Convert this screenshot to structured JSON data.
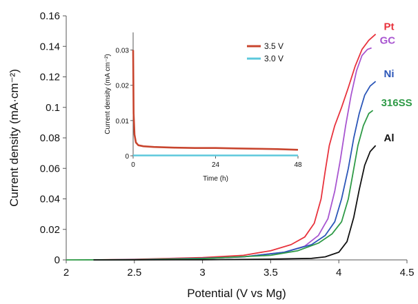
{
  "chart_data": [
    {
      "type": "line",
      "title": "",
      "xlabel": "Potential (V vs Mg)",
      "ylabel": "Current density (mA·cm⁻²)",
      "xlim": [
        2,
        4.5
      ],
      "ylim": [
        0,
        0.16
      ],
      "xticks": [
        2,
        2.5,
        3,
        3.5,
        4,
        4.5
      ],
      "xtick_labels": [
        "2",
        "2.5",
        "3",
        "3.5",
        "4",
        "4.5"
      ],
      "yticks": [
        0,
        0.02,
        0.04,
        0.06,
        0.08,
        0.1,
        0.12,
        0.14,
        0.16
      ],
      "ytick_labels": [
        "0",
        "0.02",
        "0.04",
        "0.06",
        "0.08",
        "0.1",
        "0.12",
        "0.14",
        "0.16"
      ],
      "grid": false,
      "legend": "labels at line ends",
      "series": [
        {
          "name": "Pt",
          "color": "#e8323c",
          "points": [
            [
              2.2,
              0.0
            ],
            [
              2.5,
              0.0004
            ],
            [
              3.0,
              0.0015
            ],
            [
              3.3,
              0.003
            ],
            [
              3.5,
              0.006
            ],
            [
              3.65,
              0.01
            ],
            [
              3.75,
              0.015
            ],
            [
              3.82,
              0.024
            ],
            [
              3.87,
              0.04
            ],
            [
              3.9,
              0.058
            ],
            [
              3.93,
              0.075
            ],
            [
              3.97,
              0.088
            ],
            [
              4.02,
              0.1
            ],
            [
              4.07,
              0.113
            ],
            [
              4.12,
              0.127
            ],
            [
              4.17,
              0.138
            ],
            [
              4.22,
              0.144
            ],
            [
              4.27,
              0.148
            ]
          ]
        },
        {
          "name": "GC",
          "color": "#a855d0",
          "points": [
            [
              2.2,
              0.0
            ],
            [
              2.5,
              0.0002
            ],
            [
              3.0,
              0.001
            ],
            [
              3.3,
              0.002
            ],
            [
              3.6,
              0.005
            ],
            [
              3.75,
              0.009
            ],
            [
              3.85,
              0.016
            ],
            [
              3.92,
              0.027
            ],
            [
              3.97,
              0.045
            ],
            [
              4.01,
              0.065
            ],
            [
              4.05,
              0.088
            ],
            [
              4.09,
              0.108
            ],
            [
              4.13,
              0.124
            ],
            [
              4.17,
              0.134
            ],
            [
              4.21,
              0.138
            ],
            [
              4.24,
              0.139
            ]
          ]
        },
        {
          "name": "Ni",
          "color": "#2b56b8",
          "points": [
            [
              2.2,
              0.0
            ],
            [
              2.5,
              0.0002
            ],
            [
              3.0,
              0.001
            ],
            [
              3.3,
              0.002
            ],
            [
              3.6,
              0.005
            ],
            [
              3.8,
              0.01
            ],
            [
              3.9,
              0.016
            ],
            [
              3.97,
              0.025
            ],
            [
              4.02,
              0.04
            ],
            [
              4.07,
              0.06
            ],
            [
              4.11,
              0.08
            ],
            [
              4.15,
              0.096
            ],
            [
              4.19,
              0.108
            ],
            [
              4.23,
              0.114
            ],
            [
              4.27,
              0.117
            ]
          ]
        },
        {
          "name": "316SS",
          "color": "#2e9a46",
          "points": [
            [
              2.0,
              0.0
            ],
            [
              2.5,
              0.0001
            ],
            [
              3.0,
              0.0008
            ],
            [
              3.5,
              0.003
            ],
            [
              3.7,
              0.006
            ],
            [
              3.85,
              0.011
            ],
            [
              3.95,
              0.017
            ],
            [
              4.02,
              0.025
            ],
            [
              4.07,
              0.04
            ],
            [
              4.1,
              0.055
            ],
            [
              4.14,
              0.075
            ],
            [
              4.18,
              0.088
            ],
            [
              4.22,
              0.096
            ],
            [
              4.25,
              0.098
            ]
          ]
        },
        {
          "name": "Al",
          "color": "#111111",
          "points": [
            [
              2.2,
              0.0
            ],
            [
              2.5,
              0.0
            ],
            [
              3.0,
              0.0001
            ],
            [
              3.5,
              0.0005
            ],
            [
              3.8,
              0.001
            ],
            [
              3.9,
              0.002
            ],
            [
              4.0,
              0.005
            ],
            [
              4.06,
              0.012
            ],
            [
              4.11,
              0.028
            ],
            [
              4.15,
              0.046
            ],
            [
              4.19,
              0.062
            ],
            [
              4.23,
              0.071
            ],
            [
              4.27,
              0.075
            ]
          ]
        }
      ]
    },
    {
      "type": "line",
      "title": "",
      "xlabel": "Time (h)",
      "ylabel": "Current density (mA cm⁻²)",
      "xlim": [
        0,
        48
      ],
      "ylim": [
        0,
        0.035
      ],
      "xticks": [
        0,
        24,
        48
      ],
      "xtick_labels": [
        "0",
        "24",
        "48"
      ],
      "yticks": [
        0,
        0.01,
        0.02,
        0.03
      ],
      "ytick_labels": [
        "0",
        "0.01",
        "0.02",
        "0.03"
      ],
      "grid": false,
      "legend": "top-right",
      "series": [
        {
          "name": "3.5 V",
          "color": "#c8452e",
          "points": [
            [
              0,
              0.03
            ],
            [
              0.15,
              0.012
            ],
            [
              0.4,
              0.006
            ],
            [
              0.8,
              0.0038
            ],
            [
              1.5,
              0.003
            ],
            [
              3,
              0.0027
            ],
            [
              6,
              0.0025
            ],
            [
              12,
              0.0023
            ],
            [
              18,
              0.0022
            ],
            [
              24,
              0.0022
            ],
            [
              30,
              0.0021
            ],
            [
              36,
              0.002
            ],
            [
              42,
              0.0019
            ],
            [
              48,
              0.0017
            ]
          ]
        },
        {
          "name": "3.0 V",
          "color": "#5cc8dc",
          "points": [
            [
              0,
              0.0001
            ],
            [
              48,
              0.0001
            ]
          ]
        }
      ]
    }
  ]
}
